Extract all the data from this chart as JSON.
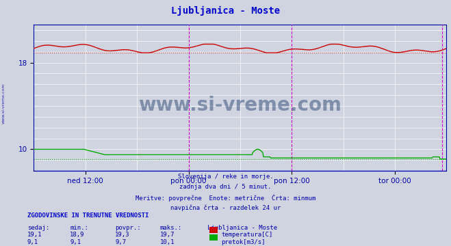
{
  "title": "Ljubljanica - Moste",
  "title_color": "#0000cc",
  "background_color": "#d0d4e0",
  "plot_bg_color": "#d0d4e0",
  "grid_color": "#ffffff",
  "axis_color": "#0000aa",
  "tick_color": "#0000aa",
  "x_tick_labels": [
    "ned 12:00",
    "pon 00:00",
    "pon 12:00",
    "tor 00:00"
  ],
  "x_tick_positions": [
    0.125,
    0.375,
    0.625,
    0.875
  ],
  "ylim": [
    8.0,
    21.5
  ],
  "yticks": [
    10,
    18
  ],
  "temp_avg": 19.3,
  "temp_min": 18.9,
  "temp_max": 19.7,
  "flow_avg": 9.7,
  "flow_min": 9.1,
  "flow_max": 10.1,
  "temp_color": "#cc0000",
  "temp_dotted_color": "#cc3333",
  "flow_color": "#00aa00",
  "flow_dotted_color": "#00aa00",
  "vline_color": "#cc00cc",
  "bottom_line_color": "#0000ff",
  "subtitle_lines": [
    "Slovenija / reke in morje.",
    "zadnja dva dni / 5 minut.",
    "Meritve: povprečne  Enote: metrične  Črta: minmum",
    "navpična črta - razdelek 24 ur"
  ],
  "table_header": "ZGODOVINSKE IN TRENUTNE VREDNOSTI",
  "table_cols": [
    "sedaj:",
    "min.:",
    "povpr.:",
    "maks.:",
    "Ljubljanica - Moste"
  ],
  "table_row1": [
    "19,1",
    "18,9",
    "19,3",
    "19,7"
  ],
  "table_row2": [
    "9,1",
    "9,1",
    "9,7",
    "10,1"
  ],
  "legend_temp": "temperatura[C]",
  "legend_flow": "pretok[m3/s]",
  "watermark": "www.si-vreme.com",
  "watermark_color": "#1a3a6a",
  "left_text": "www.si-vreme.com",
  "left_text_color": "#0000aa"
}
